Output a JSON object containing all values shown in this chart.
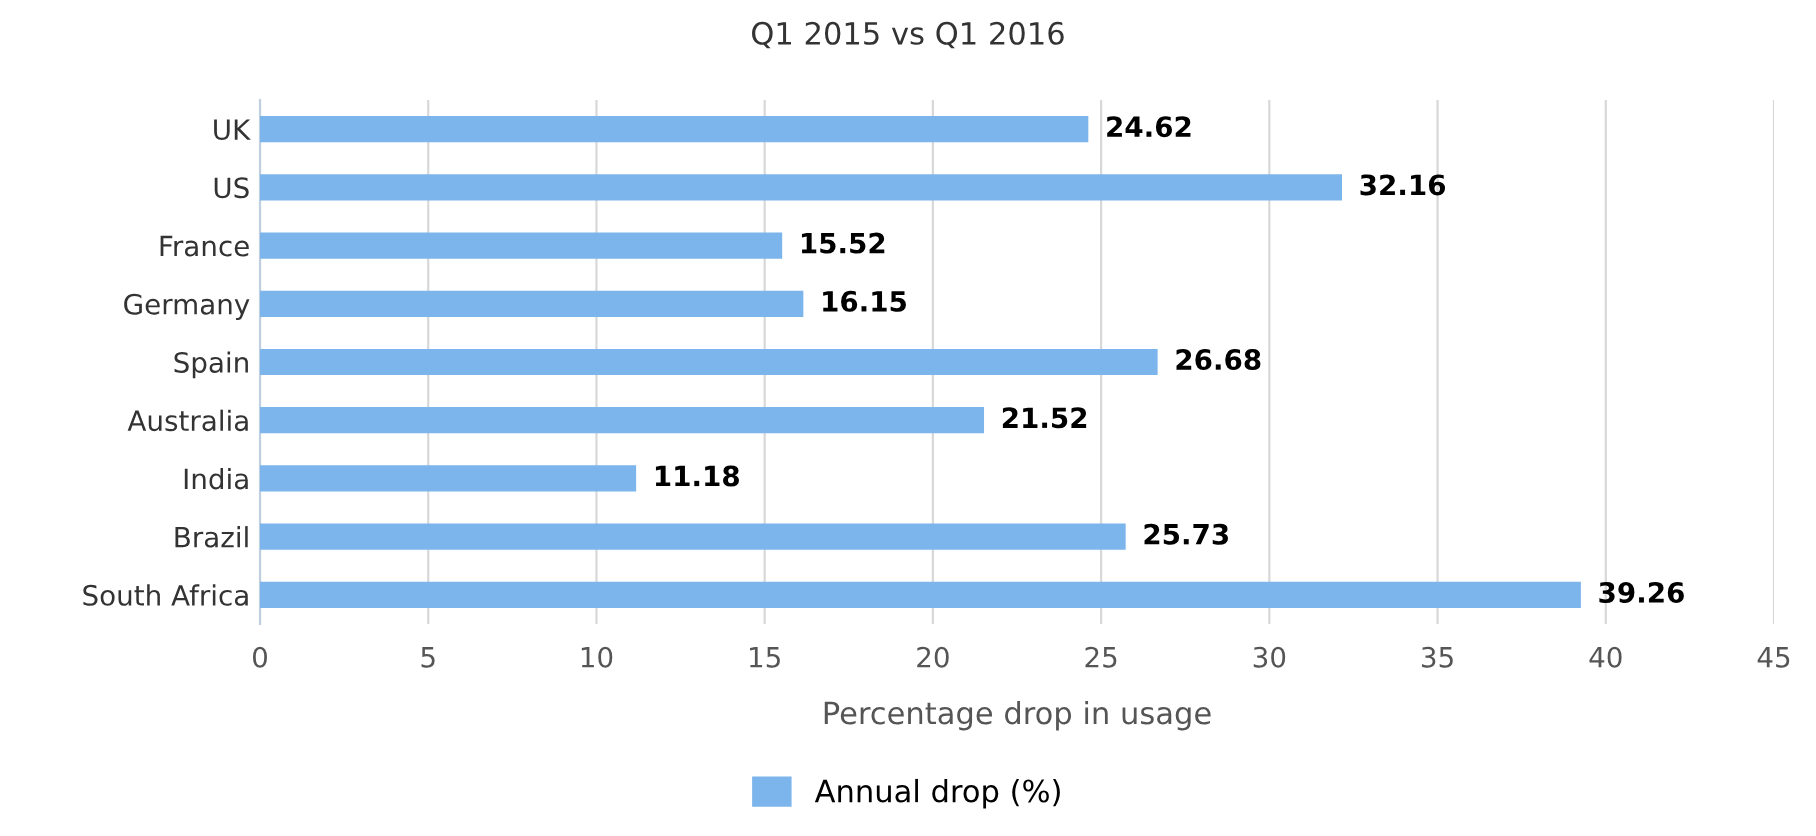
{
  "chart_data": {
    "type": "bar",
    "orientation": "horizontal",
    "title": "Q1 2015 vs Q1 2016",
    "xlabel": "Percentage drop in usage",
    "categories": [
      "UK",
      "US",
      "France",
      "Germany",
      "Spain",
      "Australia",
      "India",
      "Brazil",
      "South Africa"
    ],
    "series": [
      {
        "name": "Annual drop (%)",
        "color": "#7cb5ec",
        "values": [
          24.62,
          32.16,
          15.52,
          16.15,
          26.68,
          21.52,
          11.18,
          25.73,
          39.26
        ]
      }
    ],
    "xlim": [
      0,
      45
    ],
    "xticks": [
      0,
      5,
      10,
      15,
      20,
      25,
      30,
      35,
      40,
      45
    ],
    "grid": "x",
    "legend": "bottom",
    "data_labels": true
  }
}
